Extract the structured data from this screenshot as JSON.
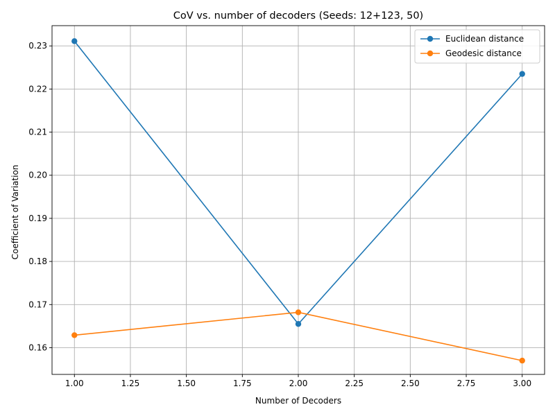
{
  "chart_data": {
    "type": "line",
    "title": "CoV vs. number of decoders (Seeds: 12+123, 50)",
    "xlabel": "Number of Decoders",
    "ylabel": "Coefficient of Variation",
    "xlim": [
      0.9,
      3.1
    ],
    "ylim": [
      0.1538,
      0.2347
    ],
    "x_ticks": [
      1.0,
      1.25,
      1.5,
      1.75,
      2.0,
      2.25,
      2.5,
      2.75,
      3.0
    ],
    "x_tick_labels": [
      "1.00",
      "1.25",
      "1.50",
      "1.75",
      "2.00",
      "2.25",
      "2.50",
      "2.75",
      "3.00"
    ],
    "y_ticks": [
      0.16,
      0.17,
      0.18,
      0.19,
      0.2,
      0.21,
      0.22,
      0.23
    ],
    "y_tick_labels": [
      "0.16",
      "0.17",
      "0.18",
      "0.19",
      "0.20",
      "0.21",
      "0.22",
      "0.23"
    ],
    "grid": true,
    "legend_position": "top-right",
    "x": [
      1,
      2,
      3
    ],
    "series": [
      {
        "name": "Euclidean distance",
        "color": "#1f77b4",
        "marker": "circle",
        "values": [
          0.2311,
          0.1655,
          0.2235
        ]
      },
      {
        "name": "Geodesic distance",
        "color": "#ff7f0e",
        "marker": "circle",
        "values": [
          0.1629,
          0.1682,
          0.157
        ]
      }
    ]
  }
}
